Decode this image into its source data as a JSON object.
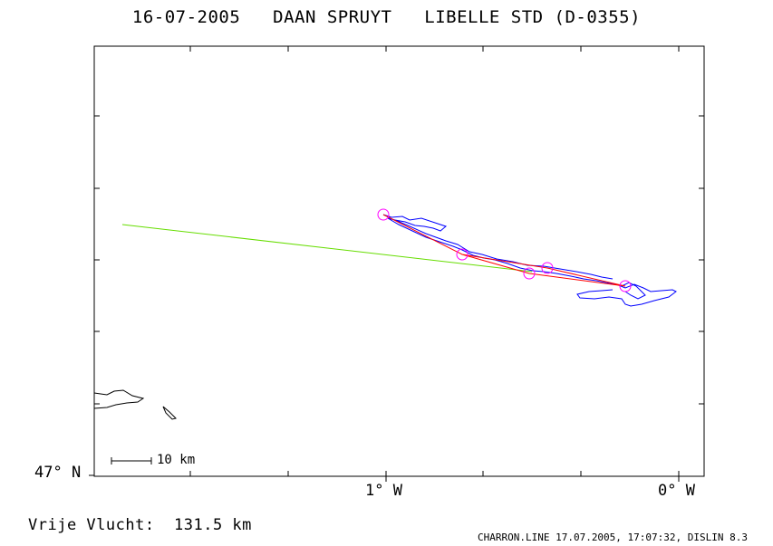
{
  "title": "16-07-2005   DAAN SPRUYT   LIBELLE STD (D-0355)",
  "axes": {
    "y_label": "47° N",
    "x_labels": [
      "1° W",
      "0° W"
    ]
  },
  "scale_bar": {
    "label": "10 km"
  },
  "footer": {
    "left": "Vrije Vlucht:  131.5 km",
    "right": "CHARRON.LINE 17.07.2005, 17:07:32, DISLIN 8.3"
  },
  "colors": {
    "track": "#0000ff",
    "task": "#ff0000",
    "turnpoints": "#ff00ff",
    "free_flight": "#66dd00",
    "coast": "#000000"
  }
}
